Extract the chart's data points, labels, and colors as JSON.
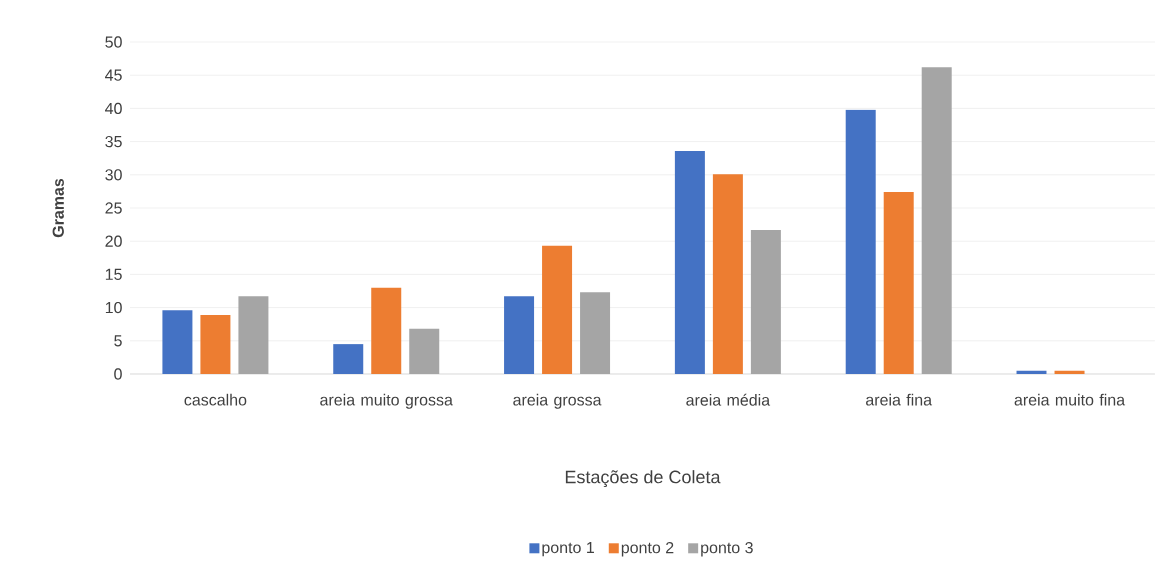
{
  "chart_data": {
    "type": "bar",
    "xlabel": "Estações de Coleta",
    "ylabel": "Gramas",
    "categories": [
      "cascalho",
      "areia muito grossa",
      "areia grossa",
      "areia média",
      "areia fina",
      "areia muito fina"
    ],
    "series": [
      {
        "name": "ponto 1",
        "color": "#4472c4",
        "values": [
          9.6,
          4.5,
          11.7,
          33.6,
          39.8,
          0.5
        ]
      },
      {
        "name": "ponto 2",
        "color": "#ed7d31",
        "values": [
          8.9,
          13.0,
          19.3,
          30.1,
          27.4,
          0.5
        ]
      },
      {
        "name": "ponto 3",
        "color": "#a5a5a5",
        "values": [
          11.7,
          6.8,
          12.3,
          21.7,
          46.2,
          0
        ]
      }
    ],
    "ylim": [
      0,
      50
    ],
    "yticks": [
      0,
      5,
      10,
      15,
      20,
      25,
      30,
      35,
      40,
      45,
      50
    ],
    "grid": "y",
    "legend": "bottom"
  }
}
